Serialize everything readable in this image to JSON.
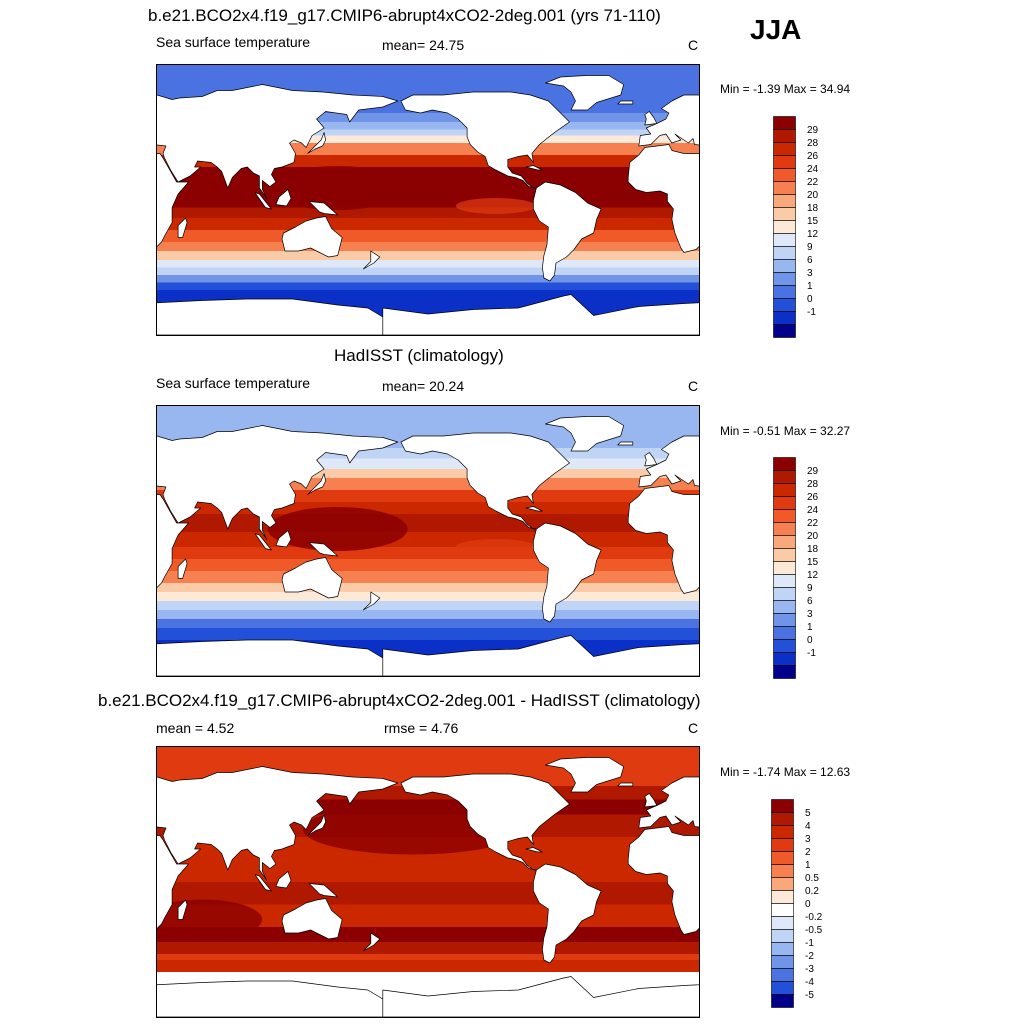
{
  "season": "JJA",
  "panels": [
    {
      "title": "b.e21.BCO2x4.f19_g17.CMIP6-abrupt4xCO2-2deg.001 (yrs 71-110)",
      "left_label": "Sea surface temperature",
      "center_label": "mean=  24.75",
      "units": "C",
      "minmax": "Min =  -1.39 Max =  34.94",
      "colorbar": [
        "29",
        "28",
        "26",
        "24",
        "22",
        "20",
        "18",
        "15",
        "12",
        "9",
        "6",
        "3",
        "1",
        "0",
        "-1"
      ],
      "colors": [
        "#8b0000",
        "#b01800",
        "#cc2800",
        "#e03a10",
        "#f05a28",
        "#f68050",
        "#f9a87c",
        "#fbcba8",
        "#fde9d8",
        "#dfe8f8",
        "#c0d4f5",
        "#98b6ef",
        "#6f94e8",
        "#4a72e0",
        "#2350d8",
        "#0a30c8",
        "#00008b"
      ]
    },
    {
      "title": "HadISST (climatology)",
      "left_label": "Sea surface temperature",
      "center_label": "mean=  20.24",
      "units": "C",
      "minmax": "Min =  -0.51 Max =  32.27",
      "colorbar": [
        "29",
        "28",
        "26",
        "24",
        "22",
        "20",
        "18",
        "15",
        "12",
        "9",
        "6",
        "3",
        "1",
        "0",
        "-1"
      ],
      "colors": [
        "#8b0000",
        "#b01800",
        "#cc2800",
        "#e03a10",
        "#f05a28",
        "#f68050",
        "#f9a87c",
        "#fbcba8",
        "#fde9d8",
        "#dfe8f8",
        "#c0d4f5",
        "#98b6ef",
        "#6f94e8",
        "#4a72e0",
        "#2350d8",
        "#0a30c8",
        "#00008b"
      ]
    },
    {
      "title": "b.e21.BCO2x4.f19_g17.CMIP6-abrupt4xCO2-2deg.001 - HadISST (climatology)",
      "left_label": "mean =   4.52",
      "center_label": "rmse =   4.76",
      "units": "C",
      "minmax": "Min =  -1.74 Max =  12.63",
      "colorbar": [
        "5",
        "4",
        "3",
        "2",
        "1",
        "0.5",
        "0.2",
        "0",
        "-0.2",
        "-0.5",
        "-1",
        "-2",
        "-3",
        "-4",
        "-5"
      ],
      "colors": [
        "#8b0000",
        "#b01800",
        "#cc2800",
        "#e03a10",
        "#f05a28",
        "#f68050",
        "#f9a87c",
        "#fde9d8",
        "#ffffff",
        "#dfe8f8",
        "#c0d4f5",
        "#98b6ef",
        "#6f94e8",
        "#4a72e0",
        "#2350d8",
        "#00008b"
      ]
    }
  ],
  "chart_data": [
    {
      "type": "heatmap",
      "title": "b.e21.BCO2x4.f19_g17.CMIP6-abrupt4xCO2-2deg.001 (yrs 71-110)",
      "variable": "Sea surface temperature",
      "units": "C",
      "mean": 24.75,
      "min": -1.39,
      "max": 34.94,
      "levels": [
        -1,
        0,
        1,
        3,
        6,
        9,
        12,
        15,
        18,
        20,
        22,
        24,
        26,
        28,
        29
      ]
    },
    {
      "type": "heatmap",
      "title": "HadISST (climatology)",
      "variable": "Sea surface temperature",
      "units": "C",
      "mean": 20.24,
      "min": -0.51,
      "max": 32.27,
      "levels": [
        -1,
        0,
        1,
        3,
        6,
        9,
        12,
        15,
        18,
        20,
        22,
        24,
        26,
        28,
        29
      ]
    },
    {
      "type": "heatmap",
      "title": "b.e21.BCO2x4.f19_g17.CMIP6-abrupt4xCO2-2deg.001 - HadISST (climatology)",
      "units": "C",
      "mean": 4.52,
      "rmse": 4.76,
      "min": -1.74,
      "max": 12.63,
      "levels": [
        -5,
        -4,
        -3,
        -2,
        -1,
        -0.5,
        -0.2,
        0,
        0.2,
        0.5,
        1,
        2,
        3,
        4,
        5
      ]
    }
  ]
}
